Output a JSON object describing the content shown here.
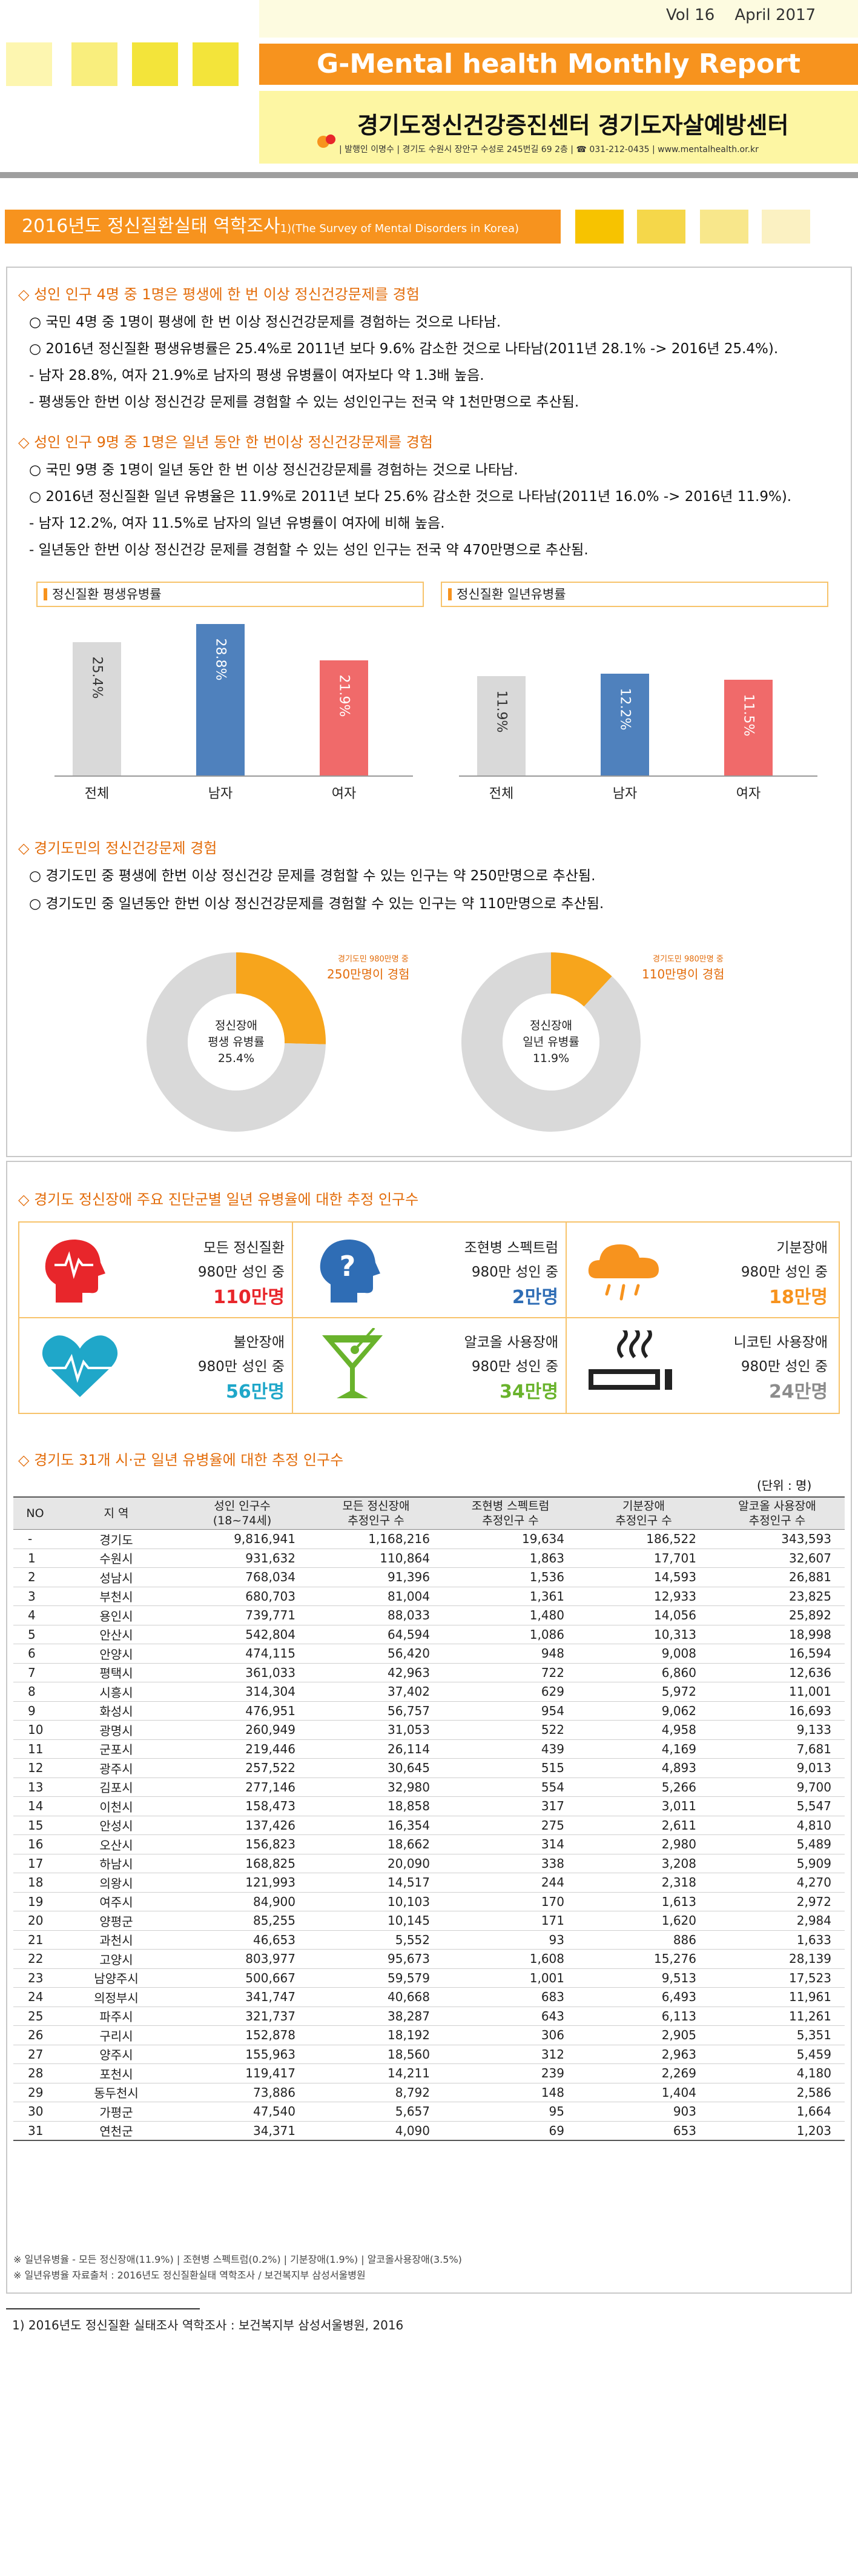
{
  "header": {
    "vol": "Vol 16",
    "date": "April 2017",
    "report_title": "G-Mental health Monthly Report",
    "org_title": "경기도정신건강증진센터 경기도자살예방센터",
    "org_info": "| 발행인 이명수 | 경기도 수원시 장안구 수성로 245번길 69 2층 | ☎ 031-212-0435 | www.mentalhealth.or.kr"
  },
  "section": {
    "title": "2016년도 정신질환실태 역학조사",
    "sup": "1)",
    "en": "(The Survey of Mental Disorders in Korea)"
  },
  "q1": {
    "heading": "◇  성인 인구 4명 중 1명은 평생에 한 번 이상 정신건강문제를 경험",
    "lines": [
      "○  국민 4명 중 1명이 평생에 한 번 이상 정신건강문제를 경험하는 것으로 나타남.",
      "○  2016년 정신질환 평생유병률은 25.4%로 2011년 보다 9.6% 감소한 것으로 나타남(2011년 28.1% -> 2016년 25.4%).",
      "  - 남자 28.8%, 여자 21.9%로 남자의 평생 유병률이 여자보다 약 1.3배 높음.",
      "  - 평생동안 한번 이상 정신건강 문제를 경험할 수 있는 성인인구는 전국 약 1천만명으로 추산됨."
    ]
  },
  "q2": {
    "heading": "◇  성인 인구 9명 중 1명은 일년 동안 한 번이상 정신건강문제를 경험",
    "lines": [
      "○  국민 9명 중 1명이 일년 동안 한 번 이상 정신건강문제를 경험하는 것으로 나타남.",
      "○  2016년 정신질환 일년 유병율은 11.9%로 2011년 보다 25.6% 감소한 것으로 나타남(2011년 16.0% -> 2016년 11.9%).",
      "  - 남자 12.2%, 여자 11.5%로 남자의 일년 유병률이 여자에 비해 높음.",
      "  - 일년동안 한번 이상 정신건강 문제를 경험할 수 있는 성인 인구는 전국 약 470만명으로 추산됨."
    ]
  },
  "chart_data": [
    {
      "type": "bar",
      "title": "정신질환 평생유병률",
      "categories": [
        "전체",
        "남자",
        "여자"
      ],
      "values": [
        25.4,
        28.8,
        21.9
      ],
      "value_labels": [
        "25.4%",
        "28.8%",
        "21.9%"
      ],
      "colors": [
        "#d9d9d9",
        "#4f81bd",
        "#f06a6a"
      ]
    },
    {
      "type": "bar",
      "title": "정신질환 일년유병률",
      "categories": [
        "전체",
        "남자",
        "여자"
      ],
      "values": [
        11.9,
        12.2,
        11.5
      ],
      "value_labels": [
        "11.9%",
        "12.2%",
        "11.5%"
      ],
      "colors": [
        "#d9d9d9",
        "#4f81bd",
        "#f06a6a"
      ]
    },
    {
      "type": "pie",
      "center_lines": [
        "정신장애",
        "평생 유병률",
        "25.4%"
      ],
      "callout_small": "경기도민 980만명 중",
      "callout_big": "250만명이 경험",
      "values": [
        25.4,
        74.6
      ],
      "colors": [
        "#f7a51c",
        "#d9d9d9"
      ]
    },
    {
      "type": "pie",
      "center_lines": [
        "정신장애",
        "일년 유병률",
        "11.9%"
      ],
      "callout_small": "경기도민 980만명 중",
      "callout_big": "110만명이 경험",
      "values": [
        11.9,
        88.1
      ],
      "colors": [
        "#f7a51c",
        "#d9d9d9"
      ]
    }
  ],
  "q3": {
    "heading": "◇  경기도민의 정신건강문제 경험",
    "lines": [
      "○  경기도민 중 평생에 한번 이상 정신건강 문제를 경험할 수 있는 인구는 약 250만명으로 추산됨.",
      "○  경기도민 중 일년동안 한번 이상 정신건강문제를 경험할 수 있는 인구는 약 110만명으로 추산됨."
    ]
  },
  "q4": {
    "heading": "◇  경기도 정신장애 주요 진단군별 일년 유병율에 대한 추정 인구수",
    "cells": [
      {
        "name": "모든 정신질환",
        "sub": "980만 성인 중",
        "value": "110만명",
        "color": "#e8262b",
        "icon": "head-pulse-icon"
      },
      {
        "name": "조현병 스펙트럼",
        "sub": "980만 성인 중",
        "value": "2만명",
        "color": "#2f6db5",
        "icon": "head-question-icon"
      },
      {
        "name": "기분장애",
        "sub": "980만 성인 중",
        "value": "18만명",
        "color": "#f7931e",
        "icon": "rain-cloud-icon"
      },
      {
        "name": "불안장애",
        "sub": "980만 성인 중",
        "value": "56만명",
        "color": "#1fa7c9",
        "icon": "heart-pulse-icon"
      },
      {
        "name": "알코올 사용장애",
        "sub": "980만 성인 중",
        "value": "34만명",
        "color": "#69b32c",
        "icon": "cocktail-icon"
      },
      {
        "name": "니코틴 사용장애",
        "sub": "980만 성인 중",
        "value": "24만명",
        "color": "#8c8c8c",
        "icon": "cigarette-icon"
      }
    ]
  },
  "q5": {
    "heading": "◇  경기도 31개 시·군 일년 유병율에 대한 추정 인구수",
    "unit": "(단위 : 명)",
    "columns": [
      "NO",
      "지  역",
      "성인 인구수\n(18~74세)",
      "모든 정신장애\n추정인구 수",
      "조현병 스펙트럼\n추정인구 수",
      "기분장애\n추정인구 수",
      "알코올 사용장애\n추정인구 수"
    ],
    "rows": [
      [
        "-",
        "경기도",
        "9,816,941",
        "1,168,216",
        "19,634",
        "186,522",
        "343,593"
      ],
      [
        "1",
        "수원시",
        "931,632",
        "110,864",
        "1,863",
        "17,701",
        "32,607"
      ],
      [
        "2",
        "성남시",
        "768,034",
        "91,396",
        "1,536",
        "14,593",
        "26,881"
      ],
      [
        "3",
        "부천시",
        "680,703",
        "81,004",
        "1,361",
        "12,933",
        "23,825"
      ],
      [
        "4",
        "용인시",
        "739,771",
        "88,033",
        "1,480",
        "14,056",
        "25,892"
      ],
      [
        "5",
        "안산시",
        "542,804",
        "64,594",
        "1,086",
        "10,313",
        "18,998"
      ],
      [
        "6",
        "안양시",
        "474,115",
        "56,420",
        "948",
        "9,008",
        "16,594"
      ],
      [
        "7",
        "평택시",
        "361,033",
        "42,963",
        "722",
        "6,860",
        "12,636"
      ],
      [
        "8",
        "시흥시",
        "314,304",
        "37,402",
        "629",
        "5,972",
        "11,001"
      ],
      [
        "9",
        "화성시",
        "476,951",
        "56,757",
        "954",
        "9,062",
        "16,693"
      ],
      [
        "10",
        "광명시",
        "260,949",
        "31,053",
        "522",
        "4,958",
        "9,133"
      ],
      [
        "11",
        "군포시",
        "219,446",
        "26,114",
        "439",
        "4,169",
        "7,681"
      ],
      [
        "12",
        "광주시",
        "257,522",
        "30,645",
        "515",
        "4,893",
        "9,013"
      ],
      [
        "13",
        "김포시",
        "277,146",
        "32,980",
        "554",
        "5,266",
        "9,700"
      ],
      [
        "14",
        "이천시",
        "158,473",
        "18,858",
        "317",
        "3,011",
        "5,547"
      ],
      [
        "15",
        "안성시",
        "137,426",
        "16,354",
        "275",
        "2,611",
        "4,810"
      ],
      [
        "16",
        "오산시",
        "156,823",
        "18,662",
        "314",
        "2,980",
        "5,489"
      ],
      [
        "17",
        "하남시",
        "168,825",
        "20,090",
        "338",
        "3,208",
        "5,909"
      ],
      [
        "18",
        "의왕시",
        "121,993",
        "14,517",
        "244",
        "2,318",
        "4,270"
      ],
      [
        "19",
        "여주시",
        "84,900",
        "10,103",
        "170",
        "1,613",
        "2,972"
      ],
      [
        "20",
        "양평군",
        "85,255",
        "10,145",
        "171",
        "1,620",
        "2,984"
      ],
      [
        "21",
        "과천시",
        "46,653",
        "5,552",
        "93",
        "886",
        "1,633"
      ],
      [
        "22",
        "고양시",
        "803,977",
        "95,673",
        "1,608",
        "15,276",
        "28,139"
      ],
      [
        "23",
        "남양주시",
        "500,667",
        "59,579",
        "1,001",
        "9,513",
        "17,523"
      ],
      [
        "24",
        "의정부시",
        "341,747",
        "40,668",
        "683",
        "6,493",
        "11,961"
      ],
      [
        "25",
        "파주시",
        "321,737",
        "38,287",
        "643",
        "6,113",
        "11,261"
      ],
      [
        "26",
        "구리시",
        "152,878",
        "18,192",
        "306",
        "2,905",
        "5,351"
      ],
      [
        "27",
        "양주시",
        "155,963",
        "18,560",
        "312",
        "2,963",
        "5,459"
      ],
      [
        "28",
        "포천시",
        "119,417",
        "14,211",
        "239",
        "2,269",
        "4,180"
      ],
      [
        "29",
        "동두천시",
        "73,886",
        "8,792",
        "148",
        "1,404",
        "2,586"
      ],
      [
        "30",
        "가평군",
        "47,540",
        "5,657",
        "95",
        "903",
        "1,664"
      ],
      [
        "31",
        "연천군",
        "34,371",
        "4,090",
        "69",
        "653",
        "1,203"
      ]
    ],
    "notes": [
      "※  일년유병율 - 모든 정신장애(11.9%) | 조현병 스펙트럼(0.2%) | 기분장애(1.9%) | 알코올사용장애(3.5%)",
      "※  일년유병율 자료출처 : 2016년도 정신질환실태 역학조사 / 보건복지부 삼성서울병원"
    ]
  },
  "footnote": "1) 2016년도 정신질환 실태조사 역학조사 : 보건복지부 삼성서울병원, 2016"
}
